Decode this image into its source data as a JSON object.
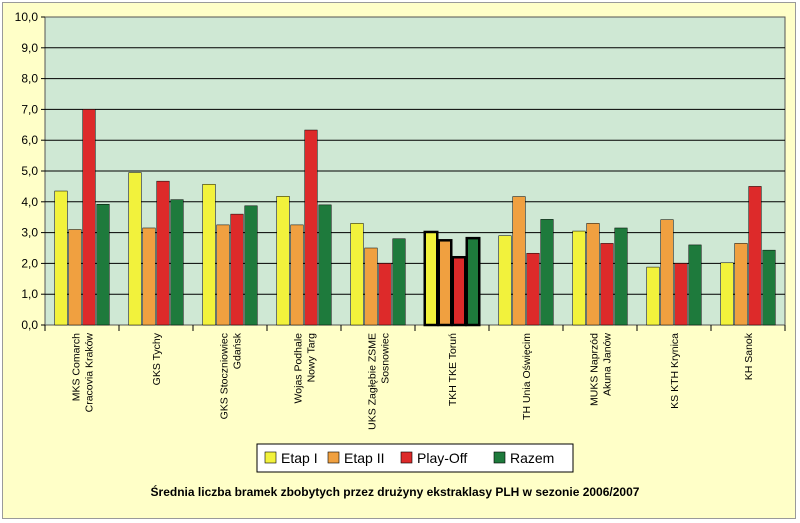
{
  "chart_data": {
    "type": "bar",
    "title": "Średnia liczba bramek zbobytych przez drużyny ekstraklasy PLH w sezonie 2006/2007",
    "categories": [
      [
        "MKS Comarch",
        "Cracovia Kraków"
      ],
      [
        "GKS Tychy"
      ],
      [
        "GKS Stoczniowiec",
        "Gdańsk"
      ],
      [
        "Wojas Podhale",
        "Nowy Targ"
      ],
      [
        "UKS Zagłębie ZSME",
        "Sosnowiec"
      ],
      [
        "TKH TKE Toruń"
      ],
      [
        "TH Unia Oświęcim"
      ],
      [
        "MUKS Naprzód",
        "Akuna Janów"
      ],
      [
        "KS KTH Krynica"
      ],
      [
        "KH Sanok"
      ]
    ],
    "series": [
      {
        "name": "Etap I",
        "color": "#f2f23c",
        "values": [
          4.35,
          4.95,
          4.57,
          4.18,
          3.3,
          3.02,
          2.9,
          3.05,
          1.88,
          2.02
        ]
      },
      {
        "name": "Etap II",
        "color": "#f0a040",
        "values": [
          3.1,
          3.15,
          3.25,
          3.25,
          2.5,
          2.75,
          4.17,
          3.3,
          3.42,
          2.65
        ]
      },
      {
        "name": "Play-Off",
        "color": "#dd2a2a",
        "values": [
          7.0,
          4.67,
          3.6,
          6.33,
          2.0,
          2.2,
          2.33,
          2.65,
          2.0,
          4.5
        ]
      },
      {
        "name": "Razem",
        "color": "#1e7a3c",
        "values": [
          3.92,
          4.07,
          3.87,
          3.9,
          2.8,
          2.82,
          3.43,
          3.15,
          2.6,
          2.43
        ]
      }
    ],
    "highlighted_category_index": 5,
    "ylim": [
      0,
      10
    ],
    "yticks": [
      "0,0",
      "1,0",
      "2,0",
      "3,0",
      "4,0",
      "5,0",
      "6,0",
      "7,0",
      "8,0",
      "9,0",
      "10,0"
    ],
    "grid": true,
    "legend": "bottom-center",
    "colors": {
      "background": "#ffffc8",
      "plot_area": "#cfe8d4",
      "grid": "#000000"
    }
  }
}
